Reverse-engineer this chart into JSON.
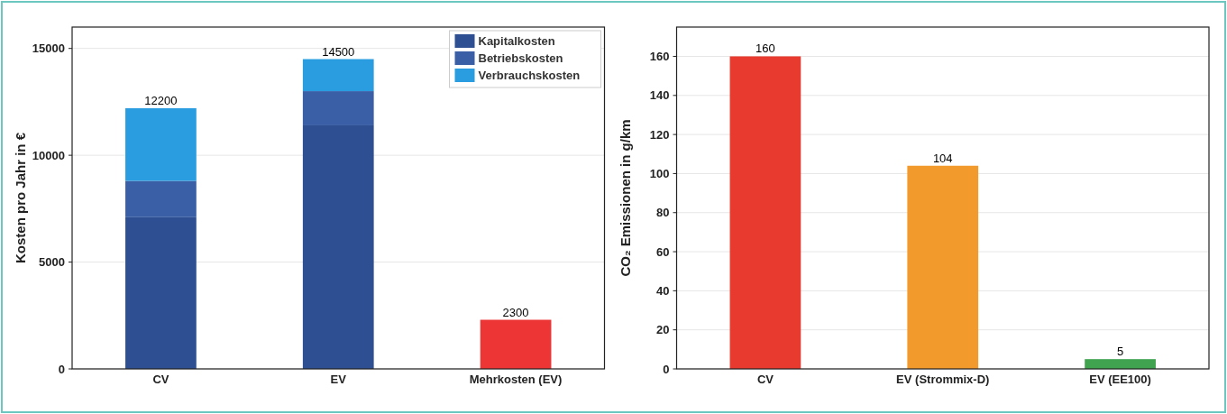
{
  "chart_data": [
    {
      "type": "bar",
      "stacked": true,
      "ylabel": "Kosten pro Jahr in €",
      "categories": [
        "CV",
        "EV",
        "Mehrkosten (EV)"
      ],
      "ylim": [
        0,
        16000
      ],
      "yticks": [
        0,
        5000,
        10000,
        15000
      ],
      "grid": "y",
      "legend": "top right",
      "totals": [
        "12200",
        "14500",
        "2300"
      ],
      "series": [
        {
          "name": "Kapitalkosten",
          "color": "#2f4f93",
          "values": [
            7100,
            11400,
            null
          ]
        },
        {
          "name": "Betriebskosten",
          "color": "#3b5fa6",
          "values": [
            1700,
            1600,
            null
          ]
        },
        {
          "name": "Verbrauchskosten",
          "color": "#2a9de0",
          "values": [
            3400,
            1500,
            null
          ]
        },
        {
          "color": "#ee3535",
          "values": [
            null,
            null,
            2300
          ]
        }
      ]
    },
    {
      "type": "bar",
      "ylabel": "CO₂ Emissionen in g/km",
      "categories": [
        "CV",
        "EV (Strommix-D)",
        "EV (EE100)"
      ],
      "values": [
        160,
        104,
        5
      ],
      "colors": [
        "#e83a2e",
        "#f29a2c",
        "#3fa34f"
      ],
      "ylim": [
        0,
        175
      ],
      "yticks": [
        0,
        20,
        40,
        60,
        80,
        100,
        120,
        140,
        160
      ],
      "grid": "y",
      "data_labels": true
    }
  ]
}
